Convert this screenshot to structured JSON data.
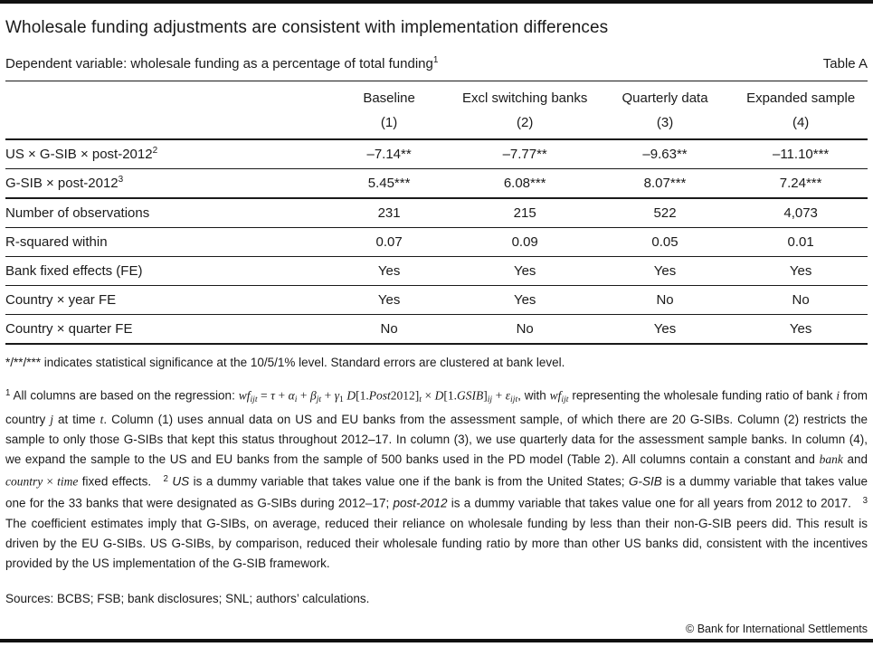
{
  "header": {
    "title": "Wholesale funding adjustments are consistent with implementation differences",
    "subtitle": "Dependent variable: wholesale funding as a percentage of total funding",
    "subtitle_marker": "1",
    "table_label": "Table A"
  },
  "table": {
    "columns": [
      {
        "label": "Baseline",
        "number": "(1)"
      },
      {
        "label": "Excl switching banks",
        "number": "(2)"
      },
      {
        "label": "Quarterly data",
        "number": "(3)"
      },
      {
        "label": "Expanded sample",
        "number": "(4)"
      }
    ],
    "rows": [
      {
        "label": "US × G-SIB × post-2012",
        "marker": "2",
        "values": [
          "–7.14**",
          "–7.77**",
          "–9.63**",
          "–11.10***"
        ]
      },
      {
        "label": "G-SIB × post-2012",
        "marker": "3",
        "values": [
          "5.45***",
          "6.08***",
          "8.07***",
          "7.24***"
        ]
      },
      {
        "label": "Number of observations",
        "marker": "",
        "values": [
          "231",
          "215",
          "522",
          "4,073"
        ]
      },
      {
        "label": "R-squared within",
        "marker": "",
        "values": [
          "0.07",
          "0.09",
          "0.05",
          "0.01"
        ]
      },
      {
        "label": "Bank fixed effects (FE)",
        "marker": "",
        "values": [
          "Yes",
          "Yes",
          "Yes",
          "Yes"
        ]
      },
      {
        "label": "Country × year FE",
        "marker": "",
        "values": [
          "Yes",
          "Yes",
          "No",
          "No"
        ]
      },
      {
        "label": "Country × quarter FE",
        "marker": "",
        "values": [
          "No",
          "No",
          "Yes",
          "Yes"
        ]
      }
    ]
  },
  "notes": {
    "significance": "*/**/*** indicates statistical significance at the 10/5/1% level. Standard errors are clustered at bank level.",
    "footnote_segments": [
      {
        "t": "1",
        "s": "sup"
      },
      {
        "t": " All columns are based on the regression: "
      },
      {
        "t": "wf",
        "s": "m"
      },
      {
        "t": "ijt",
        "s": "msub"
      },
      {
        "t": " = ",
        "s": "mr"
      },
      {
        "t": "τ",
        "s": "m"
      },
      {
        "t": " + ",
        "s": "mr"
      },
      {
        "t": "α",
        "s": "m"
      },
      {
        "t": "i",
        "s": "msub"
      },
      {
        "t": " + ",
        "s": "mr"
      },
      {
        "t": "β",
        "s": "m"
      },
      {
        "t": "jt",
        "s": "msub"
      },
      {
        "t": " + ",
        "s": "mr"
      },
      {
        "t": "γ",
        "s": "m"
      },
      {
        "t": "1",
        "s": "msubr"
      },
      {
        "t": " ",
        "s": "mr"
      },
      {
        "t": "D",
        "s": "m"
      },
      {
        "t": "[1.",
        "s": "mr"
      },
      {
        "t": "Post",
        "s": "m"
      },
      {
        "t": "2012]",
        "s": "mr"
      },
      {
        "t": "t",
        "s": "msub"
      },
      {
        "t": " × ",
        "s": "mr"
      },
      {
        "t": "D",
        "s": "m"
      },
      {
        "t": "[1.",
        "s": "mr"
      },
      {
        "t": "GSIB",
        "s": "m"
      },
      {
        "t": "]",
        "s": "mr"
      },
      {
        "t": "ij",
        "s": "msub"
      },
      {
        "t": " + ",
        "s": "mr"
      },
      {
        "t": "ε",
        "s": "m"
      },
      {
        "t": "ijt",
        "s": "msub"
      },
      {
        "t": ", with "
      },
      {
        "t": "wf",
        "s": "m"
      },
      {
        "t": "ijt",
        "s": "msub"
      },
      {
        "t": " representing the wholesale funding ratio of bank "
      },
      {
        "t": "i",
        "s": "m"
      },
      {
        "t": " from country "
      },
      {
        "t": "j",
        "s": "m"
      },
      {
        "t": " at time "
      },
      {
        "t": "t",
        "s": "m"
      },
      {
        "t": ". Column (1) uses annual data on US and EU banks from the assessment sample, of which there are 20 G-SIBs. Column (2) restricts the sample to only those G-SIBs that kept this status throughout 2012–17. In column (3), we use quarterly data for the assessment sample banks. In column (4), we expand the sample to the US and EU banks from the sample of 500 banks used in the PD model (Table 2). All columns contain a constant and "
      },
      {
        "t": "bank",
        "s": "m"
      },
      {
        "t": " and "
      },
      {
        "t": "country",
        "s": "m"
      },
      {
        "t": " × ",
        "s": "mr"
      },
      {
        "t": "time",
        "s": "m"
      },
      {
        "t": " fixed effects.   "
      },
      {
        "t": "2",
        "s": "sup"
      },
      {
        "t": " "
      },
      {
        "t": "US",
        "s": "i"
      },
      {
        "t": " is a dummy variable that takes value one if the bank is from the United States; "
      },
      {
        "t": "G-SIB",
        "s": "i"
      },
      {
        "t": " is a dummy variable that takes value one for the 33 banks that were designated as G-SIBs during 2012–17; "
      },
      {
        "t": "post-2012",
        "s": "i"
      },
      {
        "t": " is a dummy variable that takes value one for all years from 2012 to 2017.   "
      },
      {
        "t": "3",
        "s": "sup"
      },
      {
        "t": " The coefficient estimates imply that G-SIBs, on average, reduced their reliance on wholesale funding by less than their non-G-SIB peers did. This result is driven by the EU G-SIBs. US G-SIBs, by comparison, reduced their wholesale funding ratio by more than other US banks did, consistent with the incentives provided by the US implementation of the G-SIB framework."
      }
    ],
    "sources": "Sources: BCBS; FSB; bank disclosures; SNL; authors’ calculations."
  },
  "footer": {
    "copyright": "© Bank for International Settlements"
  },
  "colors": {
    "text": "#1a1a1a",
    "rule": "#1a1a1a",
    "bar": "#111111",
    "background": "#ffffff"
  }
}
